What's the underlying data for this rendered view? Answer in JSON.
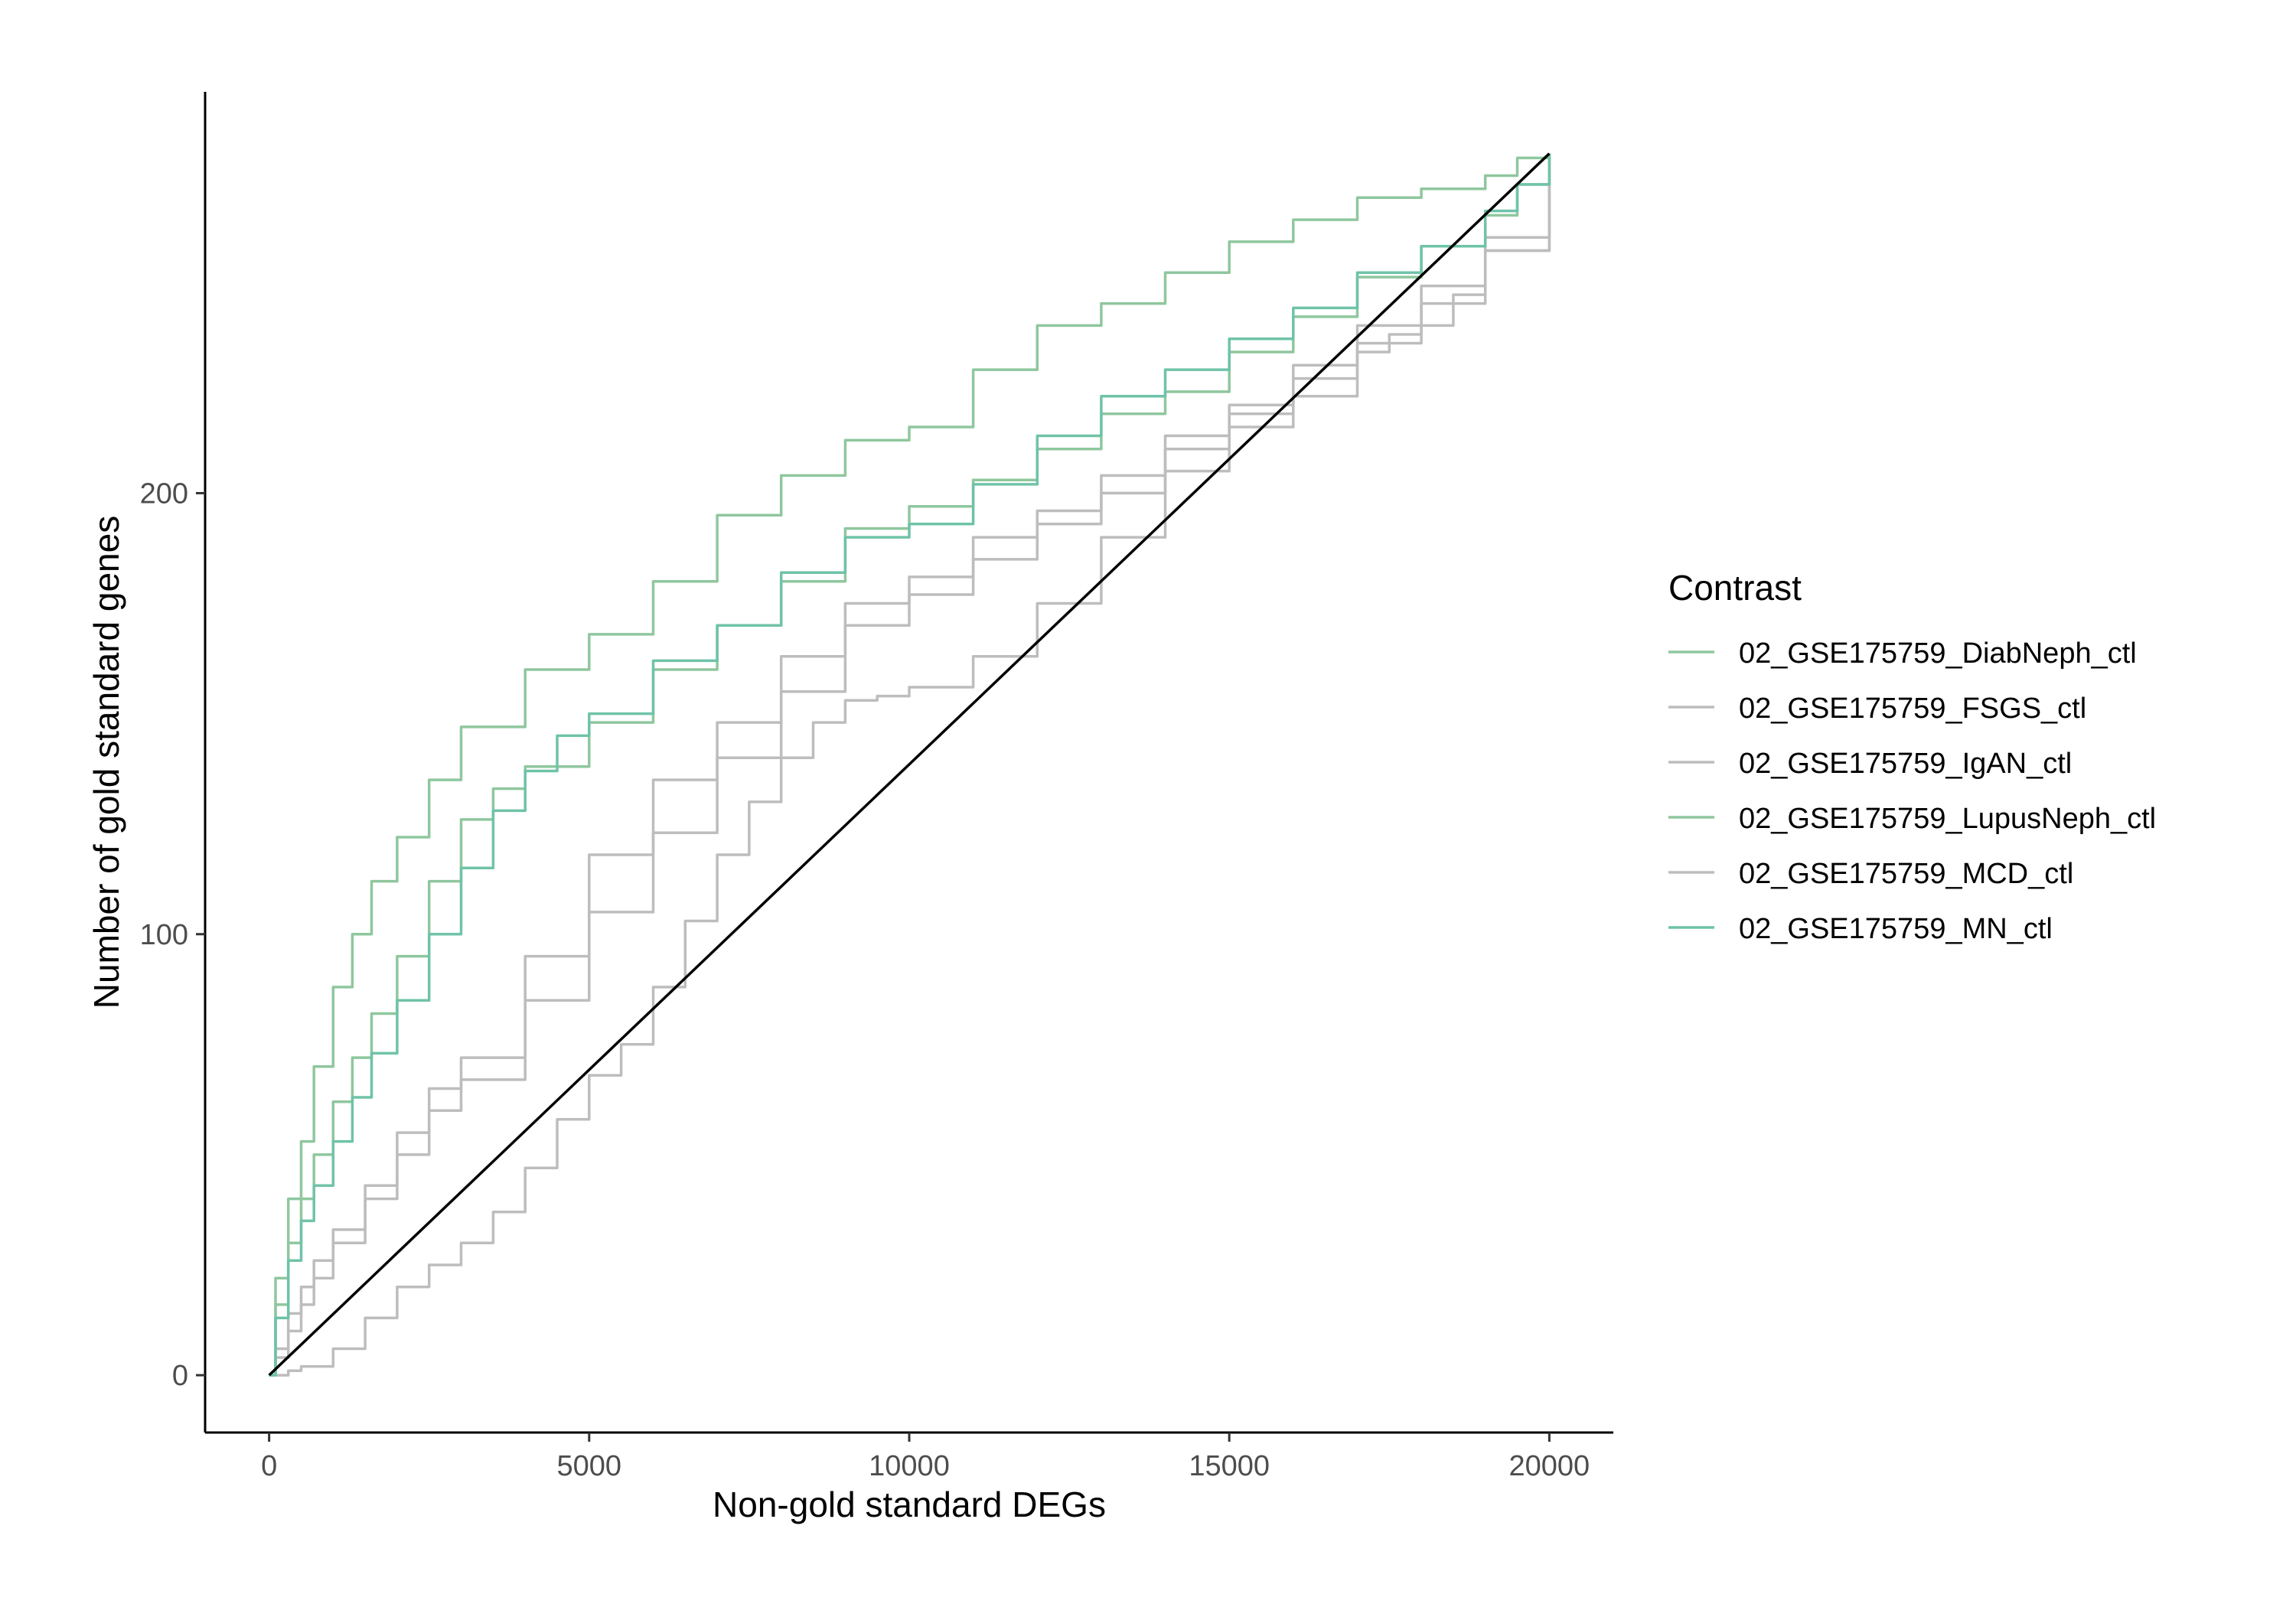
{
  "chart_data": {
    "type": "line",
    "title": "",
    "xlabel": "Non-gold standard DEGs",
    "ylabel": "Number of gold standard genes",
    "xlim": [
      -1000,
      21000
    ],
    "ylim": [
      -13,
      291
    ],
    "xticks": [
      0,
      5000,
      10000,
      15000,
      20000
    ],
    "yticks": [
      0,
      100,
      200
    ],
    "grid": false,
    "legend": {
      "title": "Contrast",
      "position": "right"
    },
    "reference_line": {
      "x": [
        0,
        20000
      ],
      "y": [
        0,
        277
      ],
      "color": "#000000"
    },
    "series": [
      {
        "name": "02_GSE175759_DiabNeph_ctl",
        "color": "#8fc79e",
        "x": [
          0,
          100,
          300,
          500,
          700,
          1000,
          1300,
          1600,
          2000,
          2500,
          3000,
          3500,
          4000,
          5000,
          6000,
          7000,
          8000,
          9000,
          10000,
          11000,
          12000,
          13000,
          14000,
          15000,
          16000,
          17000,
          18000,
          19000,
          19500,
          20000
        ],
        "y": [
          0,
          16,
          30,
          40,
          50,
          62,
          72,
          82,
          95,
          112,
          126,
          133,
          138,
          148,
          160,
          170,
          180,
          192,
          197,
          203,
          210,
          218,
          223,
          232,
          240,
          249,
          256,
          263,
          270,
          277
        ]
      },
      {
        "name": "02_GSE175759_FSGS_ctl",
        "color": "#bdbdbd",
        "x": [
          0,
          100,
          300,
          500,
          700,
          1000,
          1500,
          2000,
          2500,
          3000,
          4000,
          5000,
          6000,
          7000,
          8000,
          9000,
          10000,
          11000,
          12000,
          13000,
          14000,
          15000,
          16000,
          17000,
          18000,
          19000,
          20000
        ],
        "y": [
          0,
          6,
          14,
          20,
          26,
          33,
          43,
          55,
          65,
          72,
          95,
          118,
          135,
          148,
          163,
          175,
          181,
          190,
          196,
          204,
          213,
          220,
          229,
          238,
          247,
          258,
          277
        ]
      },
      {
        "name": "02_GSE175759_IgAN_ctl",
        "color": "#bdbdbd",
        "x": [
          0,
          100,
          300,
          500,
          700,
          1000,
          1500,
          2000,
          2500,
          3000,
          4000,
          5000,
          6000,
          7000,
          8000,
          9000,
          10000,
          11000,
          12000,
          13000,
          14000,
          15000,
          16000,
          17000,
          18000,
          19000,
          20000
        ],
        "y": [
          0,
          4,
          10,
          16,
          22,
          30,
          40,
          50,
          60,
          67,
          85,
          105,
          123,
          140,
          155,
          170,
          177,
          185,
          193,
          200,
          210,
          218,
          226,
          234,
          243,
          255,
          277
        ]
      },
      {
        "name": "02_GSE175759_LupusNeph_ctl",
        "color": "#8fc79e",
        "x": [
          0,
          100,
          300,
          500,
          700,
          1000,
          1300,
          1600,
          2000,
          2500,
          3000,
          4000,
          5000,
          6000,
          7000,
          8000,
          9000,
          10000,
          11000,
          12000,
          13000,
          14000,
          15000,
          16000,
          17000,
          18000,
          19000,
          19500,
          20000
        ],
        "y": [
          0,
          22,
          40,
          53,
          70,
          88,
          100,
          112,
          122,
          135,
          147,
          160,
          168,
          180,
          195,
          204,
          212,
          215,
          228,
          238,
          243,
          250,
          257,
          262,
          267,
          269,
          272,
          276,
          277
        ]
      },
      {
        "name": "02_GSE175759_MCD_ctl",
        "color": "#bdbdbd",
        "x": [
          0,
          300,
          500,
          1000,
          1500,
          2000,
          2500,
          3000,
          3500,
          4000,
          4500,
          5000,
          5500,
          6000,
          6500,
          7000,
          7500,
          8000,
          8500,
          9000,
          9500,
          10000,
          11000,
          12000,
          13000,
          14000,
          15000,
          16000,
          17000,
          17500,
          18000,
          18500,
          19000,
          20000
        ],
        "y": [
          0,
          1,
          2,
          6,
          13,
          20,
          25,
          30,
          37,
          47,
          58,
          68,
          75,
          88,
          103,
          118,
          130,
          140,
          148,
          153,
          154,
          156,
          163,
          175,
          190,
          205,
          215,
          222,
          232,
          236,
          238,
          245,
          255,
          277
        ]
      },
      {
        "name": "02_GSE175759_MN_ctl",
        "color": "#6fc3a8",
        "x": [
          0,
          100,
          300,
          500,
          700,
          1000,
          1300,
          1600,
          2000,
          2500,
          3000,
          3500,
          4000,
          4500,
          5000,
          6000,
          7000,
          8000,
          9000,
          10000,
          11000,
          12000,
          13000,
          14000,
          15000,
          16000,
          17000,
          18000,
          19000,
          19500,
          20000
        ],
        "y": [
          0,
          13,
          26,
          35,
          43,
          53,
          63,
          73,
          85,
          100,
          115,
          128,
          137,
          145,
          150,
          162,
          170,
          182,
          190,
          193,
          202,
          213,
          222,
          228,
          235,
          242,
          250,
          256,
          264,
          270,
          277
        ]
      }
    ]
  }
}
